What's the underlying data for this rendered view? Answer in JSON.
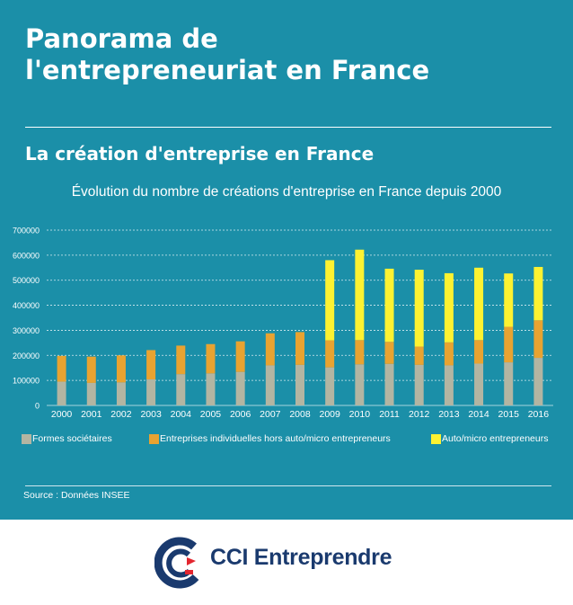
{
  "title": "Panorama de\nl'entrepreneuriat en France",
  "subtitle": "La création d'entreprise en France",
  "source": "Source : Données INSEE",
  "brand": {
    "name": "CCI Entreprendre"
  },
  "colors": {
    "background": "#1b8fa8",
    "societaires": "#b3b5a2",
    "individuelles": "#e8a331",
    "auto_micro": "#fdf231",
    "text": "#ffffff",
    "brand": "#1a3a6e",
    "brand_red": "#e3262f"
  },
  "chart_data": {
    "type": "bar",
    "stacked": true,
    "title": "Évolution du nombre de créations d'entreprise en France depuis 2000",
    "xlabel": "",
    "ylabel": "",
    "ylim": [
      0,
      700000
    ],
    "y_ticks": [
      "0",
      "100000",
      "200000",
      "300000",
      "400000",
      "500000",
      "600000",
      "700000"
    ],
    "grid": true,
    "legend_position": "bottom",
    "categories": [
      "2000",
      "2001",
      "2002",
      "2003",
      "2004",
      "2005",
      "2006",
      "2007",
      "2008",
      "2009",
      "2010",
      "2011",
      "2012",
      "2013",
      "2014",
      "2015",
      "2016"
    ],
    "series": [
      {
        "name": "Formes sociétaires",
        "color": "#b3b5a2",
        "values": [
          95000,
          90000,
          92000,
          104000,
          125000,
          128000,
          134000,
          160000,
          162000,
          152000,
          164000,
          166000,
          162000,
          160000,
          167000,
          172000,
          190000
        ]
      },
      {
        "name": "Entreprises individuelles hors auto/micro entrepreneurs",
        "color": "#e8a331",
        "values": [
          103000,
          105000,
          108000,
          117000,
          114000,
          117000,
          122000,
          128000,
          131000,
          108000,
          97000,
          88000,
          73000,
          92000,
          94000,
          142000,
          150000
        ]
      },
      {
        "name": "Auto/micro entrepreneurs",
        "color": "#fdf231",
        "values": [
          0,
          0,
          0,
          0,
          0,
          0,
          0,
          0,
          0,
          320000,
          361000,
          292000,
          307000,
          276000,
          289000,
          213000,
          213000
        ]
      }
    ]
  }
}
